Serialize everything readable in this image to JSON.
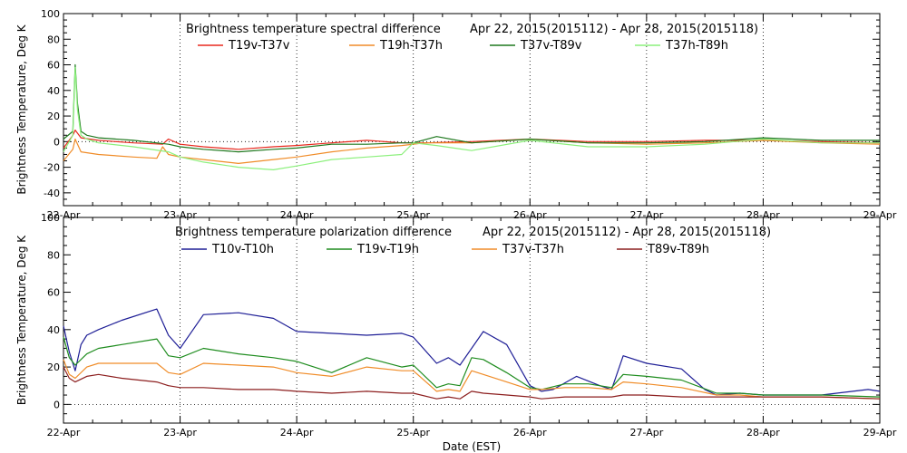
{
  "chart_data": [
    {
      "type": "line",
      "title": "Brightness temperature spectral difference",
      "date_range": "Apr 22, 2015(2015112) - Apr 28, 2015(2015118)",
      "ylabel": "Brightness Temperature, Deg K",
      "xlabel": "",
      "ylim": [
        -50,
        100
      ],
      "yticks": [
        -40,
        -20,
        0,
        20,
        40,
        60,
        80,
        100
      ],
      "xlim": [
        0,
        7
      ],
      "xtick_labels": [
        "22-Apr",
        "23-Apr",
        "24-Apr",
        "25-Apr",
        "26-Apr",
        "27-Apr",
        "28-Apr",
        "29-Apr"
      ],
      "grid": "vertical dotted at day boundaries, horizontal dotted at 0",
      "legend_position": "top",
      "series": [
        {
          "name": "T19v-T37v",
          "color": "#e8281e",
          "x": [
            0,
            0.08,
            0.1,
            0.15,
            0.3,
            0.6,
            0.85,
            0.9,
            1.0,
            1.2,
            1.5,
            1.8,
            2.0,
            2.3,
            2.6,
            2.9,
            3.1,
            3.5,
            4.0,
            4.5,
            5.0,
            5.5,
            6.0,
            6.5,
            7.0
          ],
          "y": [
            -5,
            5,
            9,
            3,
            1,
            -1,
            -2,
            2,
            -2,
            -4,
            -6,
            -4,
            -3,
            -1,
            1,
            -1,
            -1,
            0,
            2,
            0,
            0,
            1,
            1,
            0,
            -1
          ]
        },
        {
          "name": "T19h-T37h",
          "color": "#f08c28",
          "x": [
            0,
            0.08,
            0.1,
            0.15,
            0.3,
            0.6,
            0.8,
            0.85,
            0.9,
            1.0,
            1.2,
            1.5,
            1.8,
            2.0,
            2.3,
            2.6,
            2.9,
            3.1,
            3.5,
            4.0,
            4.5,
            5.0,
            5.5,
            6.0,
            6.5,
            7.0
          ],
          "y": [
            -15,
            -6,
            2,
            -8,
            -10,
            -12,
            -13,
            -4,
            -10,
            -12,
            -14,
            -17,
            -14,
            -12,
            -8,
            -5,
            -3,
            -1,
            -1,
            2,
            -1,
            -2,
            -1,
            1,
            -1,
            -2
          ]
        },
        {
          "name": "T37v-T89v",
          "color": "#1e781e",
          "x": [
            0,
            0.08,
            0.1,
            0.12,
            0.15,
            0.2,
            0.3,
            0.6,
            0.9,
            1.0,
            1.2,
            1.5,
            1.8,
            2.0,
            2.3,
            2.6,
            2.9,
            3.0,
            3.2,
            3.5,
            4.0,
            4.5,
            5.0,
            5.5,
            6.0,
            6.5,
            7.0
          ],
          "y": [
            2,
            8,
            60,
            30,
            8,
            5,
            3,
            1,
            -2,
            -4,
            -6,
            -8,
            -6,
            -5,
            -2,
            -2,
            -1,
            -1,
            4,
            -1,
            2,
            -1,
            -1,
            0,
            3,
            1,
            1
          ]
        },
        {
          "name": "T37h-T89h",
          "color": "#8cf07c",
          "x": [
            0,
            0.08,
            0.1,
            0.12,
            0.15,
            0.2,
            0.3,
            0.6,
            0.9,
            1.0,
            1.2,
            1.5,
            1.8,
            2.0,
            2.3,
            2.6,
            2.9,
            3.0,
            3.2,
            3.5,
            4.0,
            4.5,
            5.0,
            5.5,
            6.0,
            6.5,
            7.0
          ],
          "y": [
            -8,
            5,
            58,
            25,
            5,
            2,
            -1,
            -4,
            -8,
            -12,
            -16,
            -20,
            -22,
            -19,
            -14,
            -12,
            -10,
            -1,
            -3,
            -7,
            1,
            -4,
            -4,
            -2,
            2,
            -1,
            -1
          ]
        }
      ]
    },
    {
      "type": "line",
      "title": "Brightness temperature polarization difference",
      "date_range": "Apr 22, 2015(2015112) - Apr 28, 2015(2015118)",
      "ylabel": "Brightness Temperature, Deg K",
      "xlabel": "Date (EST)",
      "ylim": [
        -10,
        100
      ],
      "yticks": [
        0,
        20,
        40,
        60,
        80,
        100
      ],
      "xlim": [
        0,
        7
      ],
      "xtick_labels": [
        "22-Apr",
        "23-Apr",
        "24-Apr",
        "25-Apr",
        "26-Apr",
        "27-Apr",
        "28-Apr",
        "29-Apr"
      ],
      "grid": "vertical dotted at day boundaries, horizontal dotted at 0",
      "legend_position": "top",
      "series": [
        {
          "name": "T10v-T10h",
          "color": "#1e1e96",
          "x": [
            0,
            0.05,
            0.1,
            0.15,
            0.2,
            0.3,
            0.5,
            0.8,
            0.9,
            1.0,
            1.2,
            1.5,
            1.8,
            2.0,
            2.3,
            2.6,
            2.9,
            3.0,
            3.2,
            3.3,
            3.4,
            3.6,
            3.8,
            4.0,
            4.1,
            4.2,
            4.4,
            4.6,
            4.7,
            4.8,
            5.0,
            5.3,
            5.5,
            5.6,
            5.8,
            6.0,
            6.5,
            6.9,
            7.0
          ],
          "y": [
            42,
            28,
            18,
            32,
            37,
            40,
            45,
            51,
            37,
            30,
            48,
            49,
            46,
            39,
            38,
            37,
            38,
            36,
            22,
            25,
            21,
            39,
            32,
            10,
            7,
            8,
            15,
            10,
            8,
            26,
            22,
            19,
            8,
            5,
            6,
            5,
            5,
            8,
            7
          ]
        },
        {
          "name": "T19v-T19h",
          "color": "#1e8c1e",
          "x": [
            0,
            0.05,
            0.1,
            0.2,
            0.3,
            0.5,
            0.8,
            0.9,
            1.0,
            1.2,
            1.5,
            1.8,
            2.0,
            2.3,
            2.6,
            2.9,
            3.0,
            3.2,
            3.3,
            3.4,
            3.5,
            3.6,
            3.8,
            4.0,
            4.1,
            4.3,
            4.5,
            4.7,
            4.8,
            5.0,
            5.3,
            5.6,
            5.8,
            6.0,
            6.5,
            7.0
          ],
          "y": [
            36,
            25,
            21,
            27,
            30,
            32,
            35,
            26,
            25,
            30,
            27,
            25,
            23,
            17,
            25,
            20,
            21,
            9,
            11,
            10,
            25,
            24,
            17,
            9,
            8,
            11,
            11,
            9,
            16,
            15,
            13,
            6,
            6,
            5,
            5,
            4
          ]
        },
        {
          "name": "T37v-T37h",
          "color": "#f08c28",
          "x": [
            0,
            0.05,
            0.1,
            0.2,
            0.3,
            0.5,
            0.8,
            0.9,
            1.0,
            1.2,
            1.5,
            1.8,
            2.0,
            2.3,
            2.6,
            2.9,
            3.0,
            3.2,
            3.3,
            3.4,
            3.5,
            3.6,
            3.8,
            4.0,
            4.1,
            4.3,
            4.5,
            4.7,
            4.8,
            5.0,
            5.3,
            5.6,
            5.8,
            6.0,
            6.5,
            7.0
          ],
          "y": [
            24,
            16,
            14,
            20,
            22,
            22,
            22,
            17,
            16,
            22,
            21,
            20,
            17,
            15,
            20,
            18,
            18,
            7,
            8,
            7,
            18,
            16,
            12,
            8,
            8,
            9,
            9,
            8,
            12,
            11,
            9,
            5,
            5,
            4,
            4,
            3
          ]
        },
        {
          "name": "T89v-T89h",
          "color": "#8c1e1e",
          "x": [
            0,
            0.05,
            0.1,
            0.2,
            0.3,
            0.5,
            0.8,
            0.9,
            1.0,
            1.2,
            1.5,
            1.8,
            2.0,
            2.3,
            2.6,
            2.9,
            3.0,
            3.2,
            3.3,
            3.4,
            3.5,
            3.6,
            3.8,
            4.0,
            4.1,
            4.3,
            4.5,
            4.7,
            4.8,
            5.0,
            5.3,
            5.6,
            5.8,
            6.0,
            6.5,
            7.0
          ],
          "y": [
            20,
            14,
            12,
            15,
            16,
            14,
            12,
            10,
            9,
            9,
            8,
            8,
            7,
            6,
            7,
            6,
            6,
            3,
            4,
            3,
            7,
            6,
            5,
            4,
            3,
            4,
            4,
            4,
            5,
            5,
            4,
            4,
            4,
            4,
            4,
            3
          ]
        }
      ]
    }
  ]
}
